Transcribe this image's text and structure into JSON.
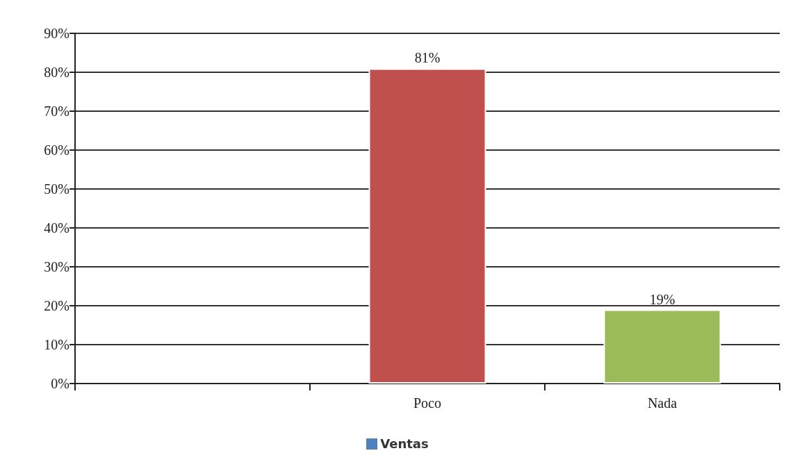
{
  "chart_data": {
    "type": "bar",
    "categories": [
      null,
      "Poco",
      "Nada"
    ],
    "series": [
      {
        "name": "Ventas",
        "color": "#4f81bd",
        "colors": [
          null,
          "#c0504d",
          "#9bbb59"
        ],
        "values": [
          null,
          81,
          19
        ],
        "value_labels": [
          null,
          "81%",
          "19%"
        ]
      }
    ],
    "ylim": [
      0,
      90
    ],
    "yticks": [
      {
        "value": 0,
        "label": "0%"
      },
      {
        "value": 10,
        "label": "10%"
      },
      {
        "value": 20,
        "label": "20%"
      },
      {
        "value": 30,
        "label": "30%"
      },
      {
        "value": 40,
        "label": "40%"
      },
      {
        "value": 50,
        "label": "50%"
      },
      {
        "value": 60,
        "label": "60%"
      },
      {
        "value": 70,
        "label": "70%"
      },
      {
        "value": 80,
        "label": "80%"
      },
      {
        "value": 90,
        "label": "90%"
      }
    ],
    "grid": "y",
    "legend": "bottom"
  }
}
